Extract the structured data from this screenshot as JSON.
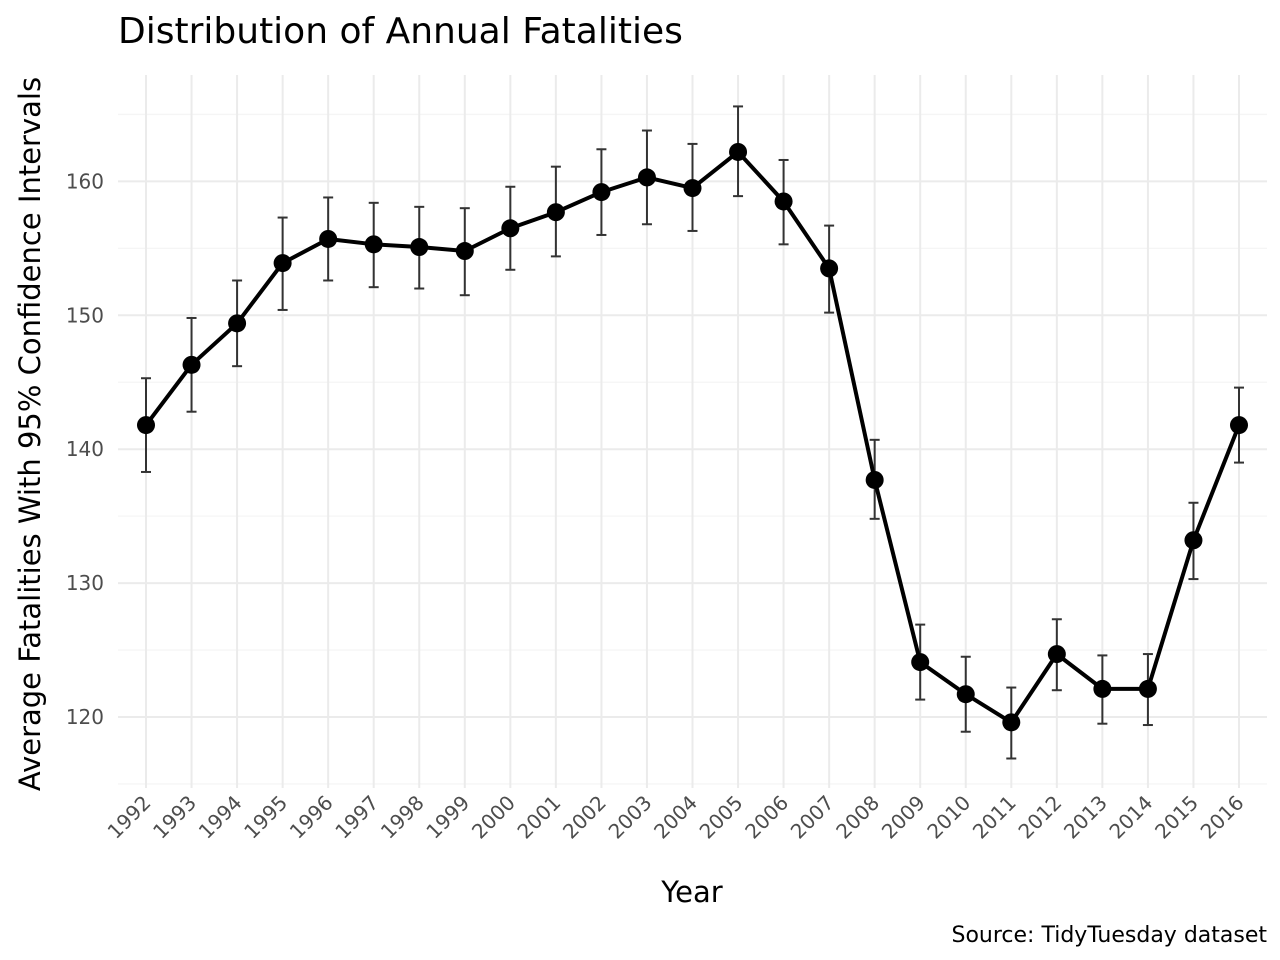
{
  "chart_data": {
    "type": "line",
    "title": "Distribution of Annual Fatalities",
    "xlabel": "Year",
    "ylabel": "Average Fatalities With 95% Confidence Intervals",
    "caption": "Source: TidyTuesday dataset",
    "x": [
      "1992",
      "1993",
      "1994",
      "1995",
      "1996",
      "1997",
      "1998",
      "1999",
      "2000",
      "2001",
      "2002",
      "2003",
      "2004",
      "2005",
      "2006",
      "2007",
      "2008",
      "2009",
      "2010",
      "2011",
      "2012",
      "2013",
      "2014",
      "2015",
      "2016"
    ],
    "series": [
      {
        "values": [
          141.8,
          146.3,
          149.4,
          153.9,
          155.7,
          155.3,
          155.1,
          154.8,
          156.5,
          157.7,
          159.2,
          160.3,
          159.5,
          162.2,
          158.5,
          153.5,
          137.7,
          124.1,
          121.7,
          119.6,
          124.7,
          122.1,
          122.1,
          133.2,
          141.8
        ],
        "lower": [
          138.3,
          142.8,
          146.2,
          150.4,
          152.6,
          152.1,
          152.0,
          151.5,
          153.4,
          154.4,
          156.0,
          156.8,
          156.3,
          158.9,
          155.3,
          150.2,
          134.8,
          121.3,
          118.9,
          116.9,
          122.0,
          119.5,
          119.4,
          130.3,
          139.0
        ],
        "upper": [
          145.3,
          149.8,
          152.6,
          157.3,
          158.8,
          158.4,
          158.1,
          158.0,
          159.6,
          161.1,
          162.4,
          163.8,
          162.8,
          165.6,
          161.6,
          156.7,
          140.7,
          126.9,
          124.5,
          122.2,
          127.3,
          124.6,
          124.7,
          136.0,
          144.6
        ]
      }
    ],
    "y_ticks": [
      120,
      130,
      140,
      150,
      160
    ],
    "ylim": [
      114.9,
      167.6
    ],
    "grid": true,
    "colors": {
      "line": "#000000",
      "errorbar": "#333333",
      "tick_label": "#4d4d4d"
    }
  }
}
